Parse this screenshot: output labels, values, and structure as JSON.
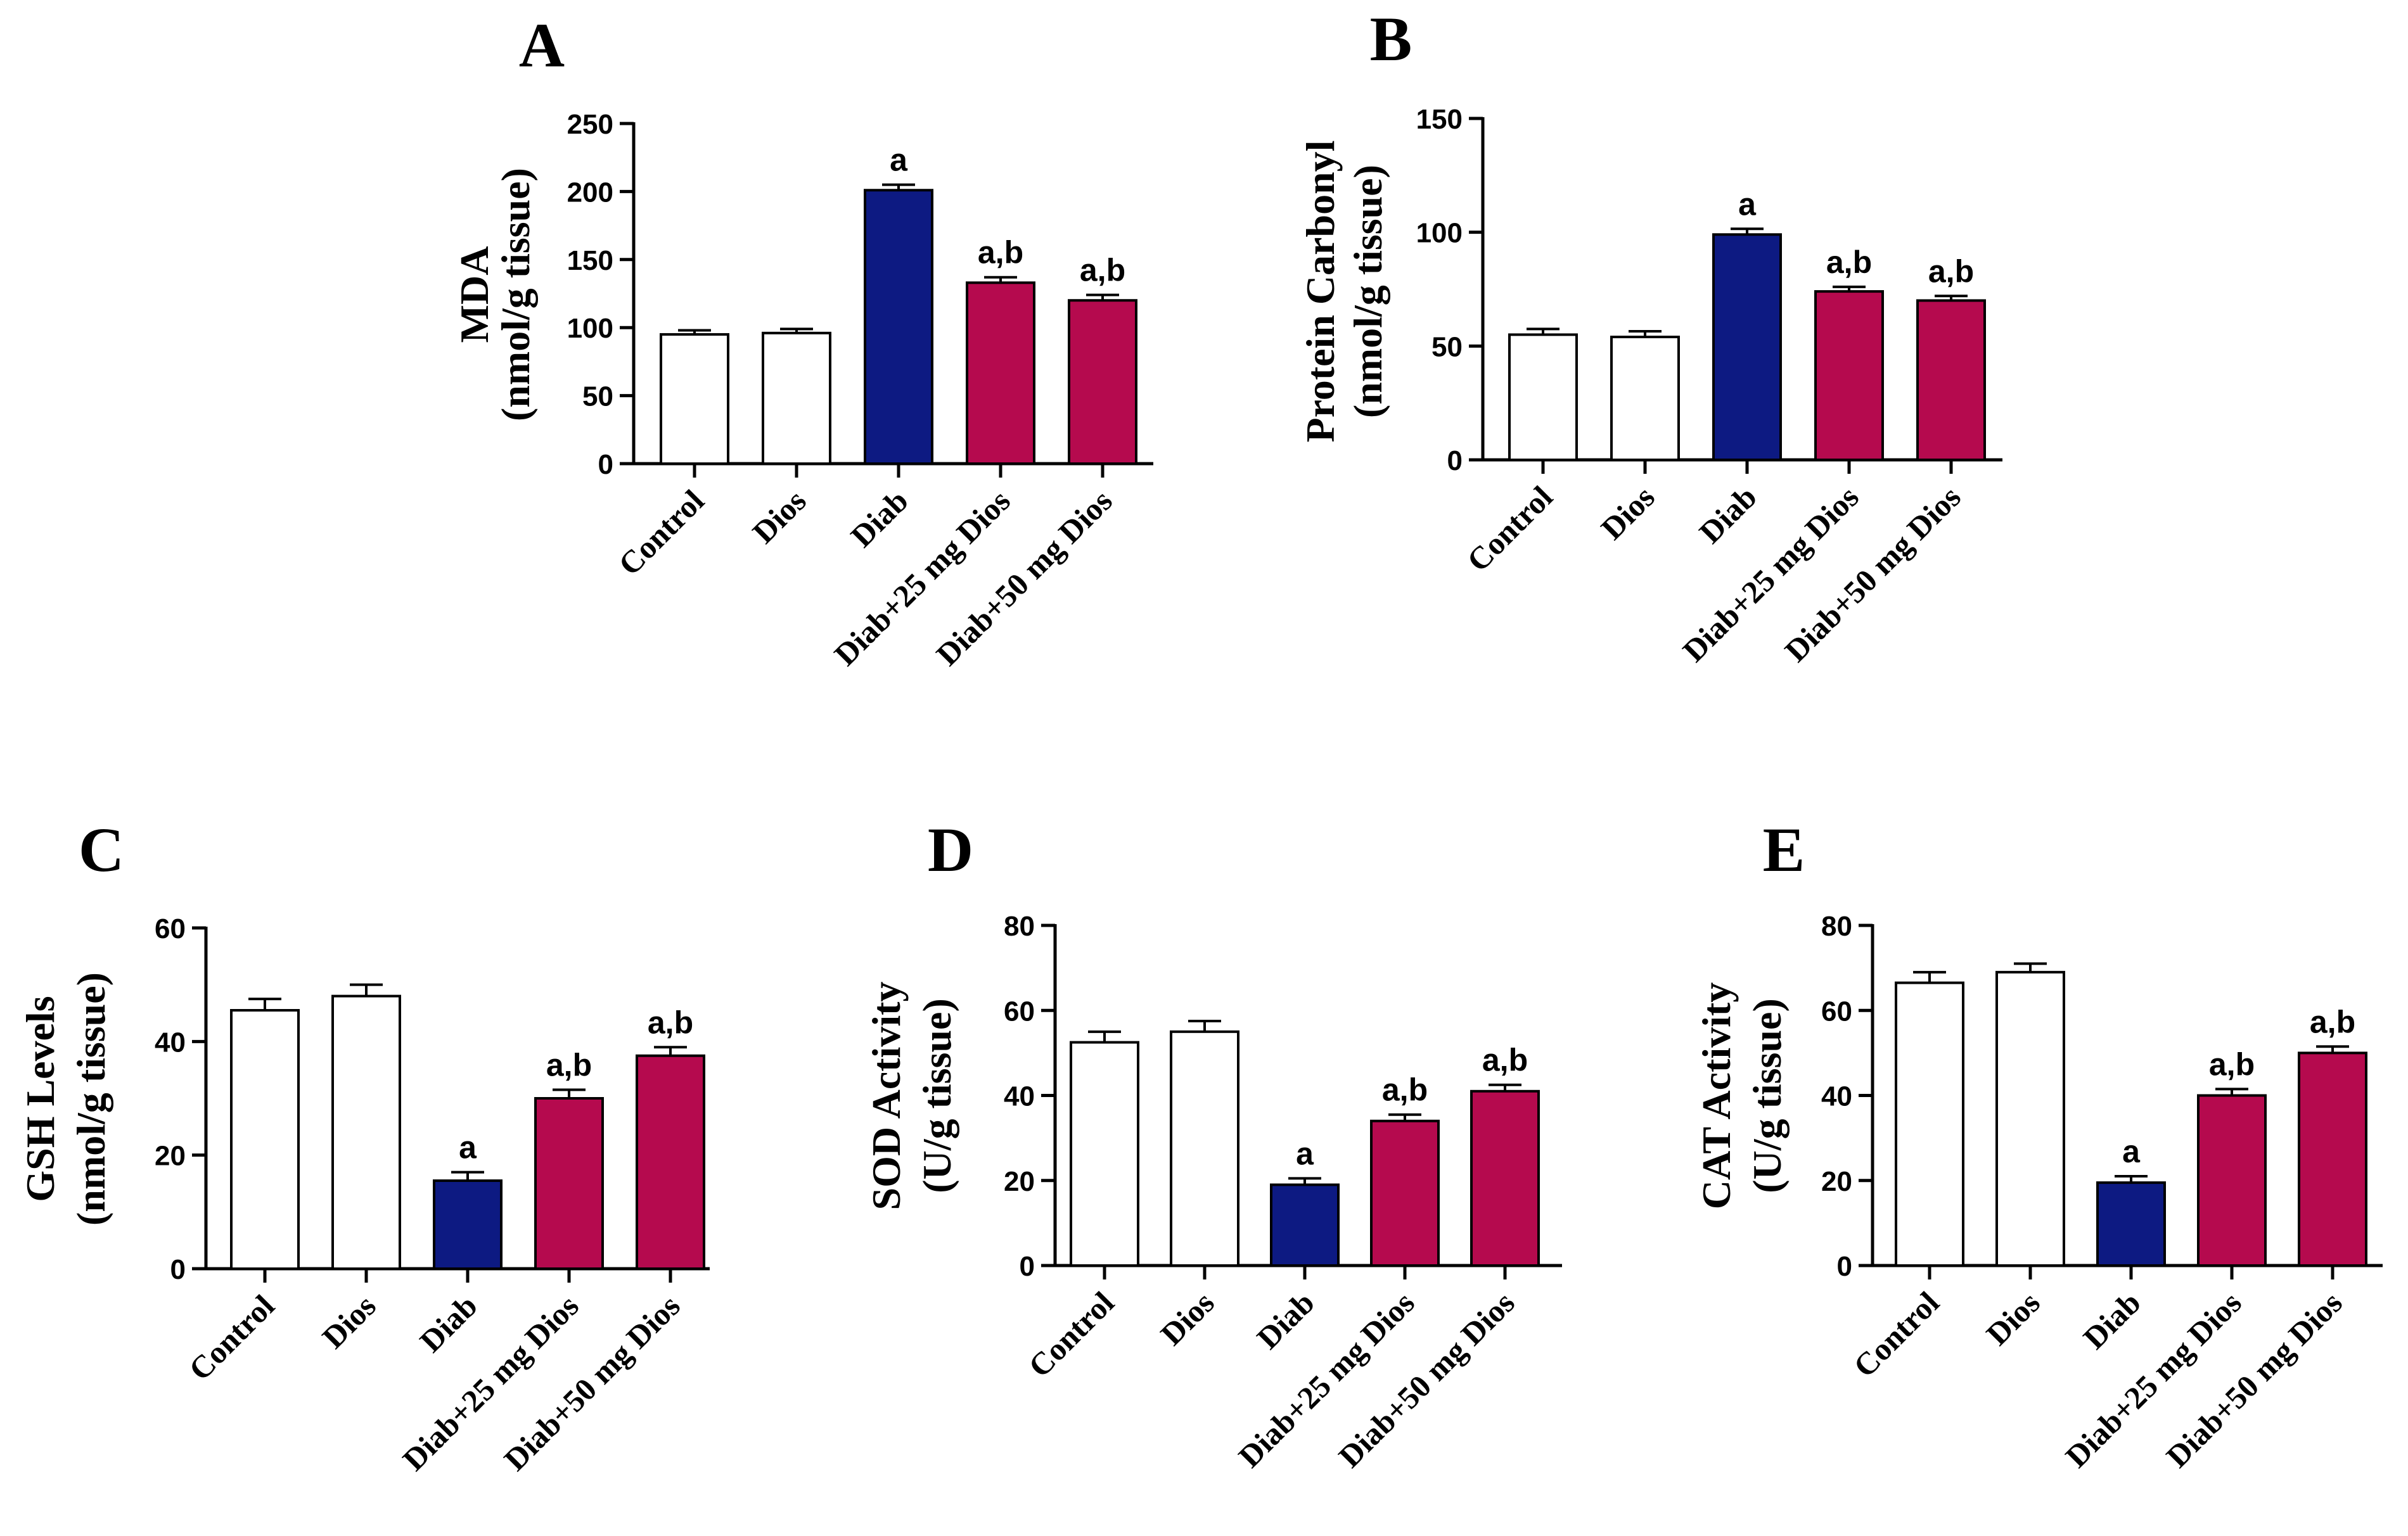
{
  "colors": {
    "white_bar": "#ffffff",
    "diab_bar": "#0d1a82",
    "treated_bar": "#b50a4e",
    "axis": "#000000"
  },
  "chart_data": [
    {
      "panel": "A",
      "type": "bar",
      "ylabel_line1": "MDA",
      "ylabel_line2": "(nmol/g tissue)",
      "ylim": [
        0,
        250
      ],
      "yticks": [
        0,
        50,
        100,
        150,
        200,
        250
      ],
      "categories": [
        "Control",
        "Dios",
        "Diab",
        "Diab+25 mg Dios",
        "Diab+50 mg Dios"
      ],
      "values": [
        95,
        96,
        201,
        133,
        120
      ],
      "errors": [
        3,
        3,
        4,
        4,
        4
      ],
      "labels": [
        "",
        "",
        "a",
        "a,b",
        "a,b"
      ]
    },
    {
      "panel": "B",
      "type": "bar",
      "ylabel_line1": "Protein Carbonyl",
      "ylabel_line2": "(nmol/g tissue)",
      "ylim": [
        0,
        150
      ],
      "yticks": [
        0,
        50,
        100,
        150
      ],
      "categories": [
        "Control",
        "Dios",
        "Diab",
        "Diab+25 mg Dios",
        "Diab+50 mg Dios"
      ],
      "values": [
        55,
        54,
        99,
        74,
        70
      ],
      "errors": [
        2.5,
        2.5,
        2.5,
        2,
        2
      ],
      "labels": [
        "",
        "",
        "a",
        "a,b",
        "a,b"
      ]
    },
    {
      "panel": "C",
      "type": "bar",
      "ylabel_line1": "GSH Levels",
      "ylabel_line2": "(nmol/g tissue)",
      "ylim": [
        0,
        60
      ],
      "yticks": [
        0,
        20,
        40,
        60
      ],
      "categories": [
        "Control",
        "Dios",
        "Diab",
        "Diab+25 mg Dios",
        "Diab+50 mg Dios"
      ],
      "values": [
        45.5,
        48,
        15.5,
        30,
        37.5
      ],
      "errors": [
        2,
        2,
        1.5,
        1.5,
        1.5
      ],
      "labels": [
        "",
        "",
        "a",
        "a,b",
        "a,b"
      ]
    },
    {
      "panel": "D",
      "type": "bar",
      "ylabel_line1": "SOD Activity",
      "ylabel_line2": "(U/g tissue)",
      "ylim": [
        0,
        80
      ],
      "yticks": [
        0,
        20,
        40,
        60,
        80
      ],
      "categories": [
        "Control",
        "Dios",
        "Diab",
        "Diab+25 mg Dios",
        "Diab+50 mg Dios"
      ],
      "values": [
        52.5,
        55,
        19,
        34,
        41
      ],
      "errors": [
        2.5,
        2.5,
        1.5,
        1.5,
        1.5
      ],
      "labels": [
        "",
        "",
        "a",
        "a,b",
        "a,b"
      ]
    },
    {
      "panel": "E",
      "type": "bar",
      "ylabel_line1": "CAT Activity",
      "ylabel_line2": "(U/g tissue)",
      "ylim": [
        0,
        80
      ],
      "yticks": [
        0,
        20,
        40,
        60,
        80
      ],
      "categories": [
        "Control",
        "Dios",
        "Diab",
        "Diab+25 mg Dios",
        "Diab+50 mg Dios"
      ],
      "values": [
        66.5,
        69,
        19.5,
        40,
        50
      ],
      "errors": [
        2.5,
        2,
        1.5,
        1.5,
        1.5
      ],
      "labels": [
        "",
        "",
        "a",
        "a,b",
        "a,b"
      ]
    }
  ]
}
